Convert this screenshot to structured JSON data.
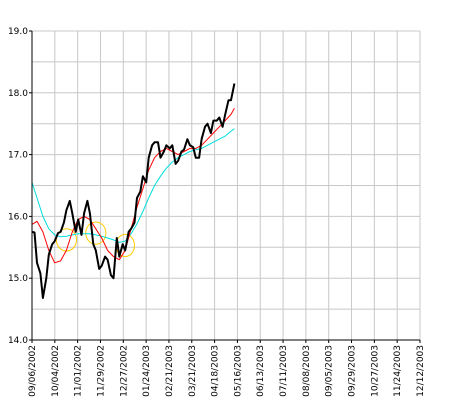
{
  "chart_data": {
    "type": "line",
    "title": "",
    "xlabel": "",
    "ylabel": "",
    "ylim": [
      14.0,
      19.0
    ],
    "yticks": [
      "19.0",
      "18.0",
      "17.0",
      "16.0",
      "15.0",
      "14.0"
    ],
    "ytick_values": [
      19,
      18,
      17,
      16,
      15,
      14
    ],
    "xticks": [
      "09/06/2002",
      "10/04/2002",
      "11/01/2002",
      "11/29/2002",
      "12/27/2002",
      "01/24/2003",
      "02/21/2003",
      "03/21/2003",
      "04/18/2003",
      "05/16/2003",
      "06/13/2003",
      "07/11/2003",
      "08/08/2003",
      "09/05/2003",
      "09/29/2003",
      "10/27/2003",
      "11/24/2003",
      "12/12/2003"
    ],
    "grid": true,
    "legend": "none",
    "x_start": "2002-09-06",
    "x_end": "2003-12-12",
    "series": [
      {
        "color": "#000000",
        "width": 2,
        "points": [
          [
            "2002-09-06",
            15.75
          ],
          [
            "2002-09-09",
            15.74
          ],
          [
            "2002-09-12",
            15.25
          ],
          [
            "2002-09-16",
            15.08
          ],
          [
            "2002-09-19",
            14.68
          ],
          [
            "2002-09-23",
            15.0
          ],
          [
            "2002-09-26",
            15.38
          ],
          [
            "2002-09-30",
            15.55
          ],
          [
            "2002-10-03",
            15.6
          ],
          [
            "2002-10-07",
            15.73
          ],
          [
            "2002-10-10",
            15.75
          ],
          [
            "2002-10-14",
            15.9
          ],
          [
            "2002-10-17",
            16.1
          ],
          [
            "2002-10-21",
            16.25
          ],
          [
            "2002-10-24",
            16.05
          ],
          [
            "2002-10-28",
            15.75
          ],
          [
            "2002-10-31",
            15.95
          ],
          [
            "2002-11-04",
            15.7
          ],
          [
            "2002-11-07",
            16.05
          ],
          [
            "2002-11-11",
            16.25
          ],
          [
            "2002-11-14",
            16.05
          ],
          [
            "2002-11-18",
            15.55
          ],
          [
            "2002-11-21",
            15.45
          ],
          [
            "2002-11-25",
            15.15
          ],
          [
            "2002-11-28",
            15.2
          ],
          [
            "2002-12-02",
            15.35
          ],
          [
            "2002-12-05",
            15.3
          ],
          [
            "2002-12-09",
            15.05
          ],
          [
            "2002-12-12",
            15.0
          ],
          [
            "2002-12-16",
            15.65
          ],
          [
            "2002-12-19",
            15.35
          ],
          [
            "2002-12-23",
            15.55
          ],
          [
            "2002-12-26",
            15.45
          ],
          [
            "2002-12-30",
            15.75
          ],
          [
            "2003-01-02",
            15.8
          ],
          [
            "2003-01-06",
            15.9
          ],
          [
            "2003-01-09",
            16.3
          ],
          [
            "2003-01-13",
            16.4
          ],
          [
            "2003-01-16",
            16.65
          ],
          [
            "2003-01-20",
            16.55
          ],
          [
            "2003-01-23",
            16.95
          ],
          [
            "2003-01-27",
            17.15
          ],
          [
            "2003-01-30",
            17.2
          ],
          [
            "2003-02-03",
            17.2
          ],
          [
            "2003-02-06",
            16.95
          ],
          [
            "2003-02-10",
            17.05
          ],
          [
            "2003-02-13",
            17.15
          ],
          [
            "2003-02-17",
            17.1
          ],
          [
            "2003-02-20",
            17.15
          ],
          [
            "2003-02-24",
            16.85
          ],
          [
            "2003-02-27",
            16.9
          ],
          [
            "2003-03-03",
            17.05
          ],
          [
            "2003-03-06",
            17.08
          ],
          [
            "2003-03-10",
            17.25
          ],
          [
            "2003-03-13",
            17.15
          ],
          [
            "2003-03-17",
            17.12
          ],
          [
            "2003-03-20",
            16.95
          ],
          [
            "2003-03-24",
            16.95
          ],
          [
            "2003-03-27",
            17.25
          ],
          [
            "2003-03-31",
            17.45
          ],
          [
            "2003-04-03",
            17.5
          ],
          [
            "2003-04-07",
            17.35
          ],
          [
            "2003-04-10",
            17.55
          ],
          [
            "2003-04-14",
            17.55
          ],
          [
            "2003-04-17",
            17.6
          ],
          [
            "2003-04-21",
            17.45
          ],
          [
            "2003-04-24",
            17.65
          ],
          [
            "2003-04-28",
            17.88
          ],
          [
            "2003-05-01",
            17.88
          ],
          [
            "2003-05-05",
            18.15
          ]
        ]
      },
      {
        "color": "#ff0000",
        "width": 1,
        "points": [
          [
            "2002-09-06",
            15.87
          ],
          [
            "2002-09-12",
            15.92
          ],
          [
            "2002-09-19",
            15.75
          ],
          [
            "2002-09-26",
            15.45
          ],
          [
            "2002-10-03",
            15.25
          ],
          [
            "2002-10-10",
            15.28
          ],
          [
            "2002-10-17",
            15.45
          ],
          [
            "2002-10-24",
            15.75
          ],
          [
            "2002-10-31",
            15.95
          ],
          [
            "2002-11-07",
            16.0
          ],
          [
            "2002-11-14",
            15.95
          ],
          [
            "2002-11-21",
            15.8
          ],
          [
            "2002-11-28",
            15.65
          ],
          [
            "2002-12-05",
            15.45
          ],
          [
            "2002-12-12",
            15.35
          ],
          [
            "2002-12-19",
            15.3
          ],
          [
            "2002-12-26",
            15.45
          ],
          [
            "2003-01-02",
            15.8
          ],
          [
            "2003-01-09",
            16.15
          ],
          [
            "2003-01-16",
            16.45
          ],
          [
            "2003-01-23",
            16.75
          ],
          [
            "2003-01-30",
            16.95
          ],
          [
            "2003-02-06",
            17.05
          ],
          [
            "2003-02-13",
            17.1
          ],
          [
            "2003-02-20",
            17.05
          ],
          [
            "2003-02-27",
            17.0
          ],
          [
            "2003-03-06",
            17.05
          ],
          [
            "2003-03-13",
            17.1
          ],
          [
            "2003-03-20",
            17.1
          ],
          [
            "2003-03-27",
            17.15
          ],
          [
            "2003-04-03",
            17.25
          ],
          [
            "2003-04-10",
            17.35
          ],
          [
            "2003-04-17",
            17.45
          ],
          [
            "2003-04-24",
            17.55
          ],
          [
            "2003-05-01",
            17.65
          ],
          [
            "2003-05-05",
            17.75
          ]
        ]
      },
      {
        "color": "#00dddd",
        "width": 1,
        "points": [
          [
            "2002-09-06",
            16.55
          ],
          [
            "2002-09-12",
            16.3
          ],
          [
            "2002-09-19",
            16.0
          ],
          [
            "2002-09-26",
            15.8
          ],
          [
            "2002-10-03",
            15.7
          ],
          [
            "2002-10-10",
            15.67
          ],
          [
            "2002-10-17",
            15.68
          ],
          [
            "2002-10-24",
            15.7
          ],
          [
            "2002-10-31",
            15.72
          ],
          [
            "2002-11-07",
            15.72
          ],
          [
            "2002-11-14",
            15.72
          ],
          [
            "2002-11-21",
            15.7
          ],
          [
            "2002-11-28",
            15.68
          ],
          [
            "2002-12-05",
            15.65
          ],
          [
            "2002-12-12",
            15.62
          ],
          [
            "2002-12-19",
            15.58
          ],
          [
            "2002-12-26",
            15.6
          ],
          [
            "2003-01-02",
            15.72
          ],
          [
            "2003-01-09",
            15.88
          ],
          [
            "2003-01-16",
            16.08
          ],
          [
            "2003-01-23",
            16.3
          ],
          [
            "2003-01-30",
            16.5
          ],
          [
            "2003-02-06",
            16.65
          ],
          [
            "2003-02-13",
            16.78
          ],
          [
            "2003-02-20",
            16.88
          ],
          [
            "2003-02-27",
            16.95
          ],
          [
            "2003-03-06",
            17.0
          ],
          [
            "2003-03-13",
            17.05
          ],
          [
            "2003-03-20",
            17.08
          ],
          [
            "2003-03-27",
            17.1
          ],
          [
            "2003-04-03",
            17.15
          ],
          [
            "2003-04-10",
            17.2
          ],
          [
            "2003-04-17",
            17.25
          ],
          [
            "2003-04-24",
            17.3
          ],
          [
            "2003-05-01",
            17.38
          ],
          [
            "2003-05-05",
            17.42
          ]
        ]
      }
    ],
    "annotations": [
      {
        "shape": "ellipse",
        "color": "#ffcc00",
        "center": [
          "2002-10-17",
          15.62
        ],
        "rx_days": 12,
        "ry": 0.18
      },
      {
        "shape": "ellipse",
        "color": "#ffcc00",
        "center": [
          "2002-11-21",
          15.73
        ],
        "rx_days": 12,
        "ry": 0.18
      },
      {
        "shape": "ellipse",
        "color": "#ffcc00",
        "center": [
          "2002-12-26",
          15.53
        ],
        "rx_days": 11,
        "ry": 0.18
      }
    ]
  }
}
